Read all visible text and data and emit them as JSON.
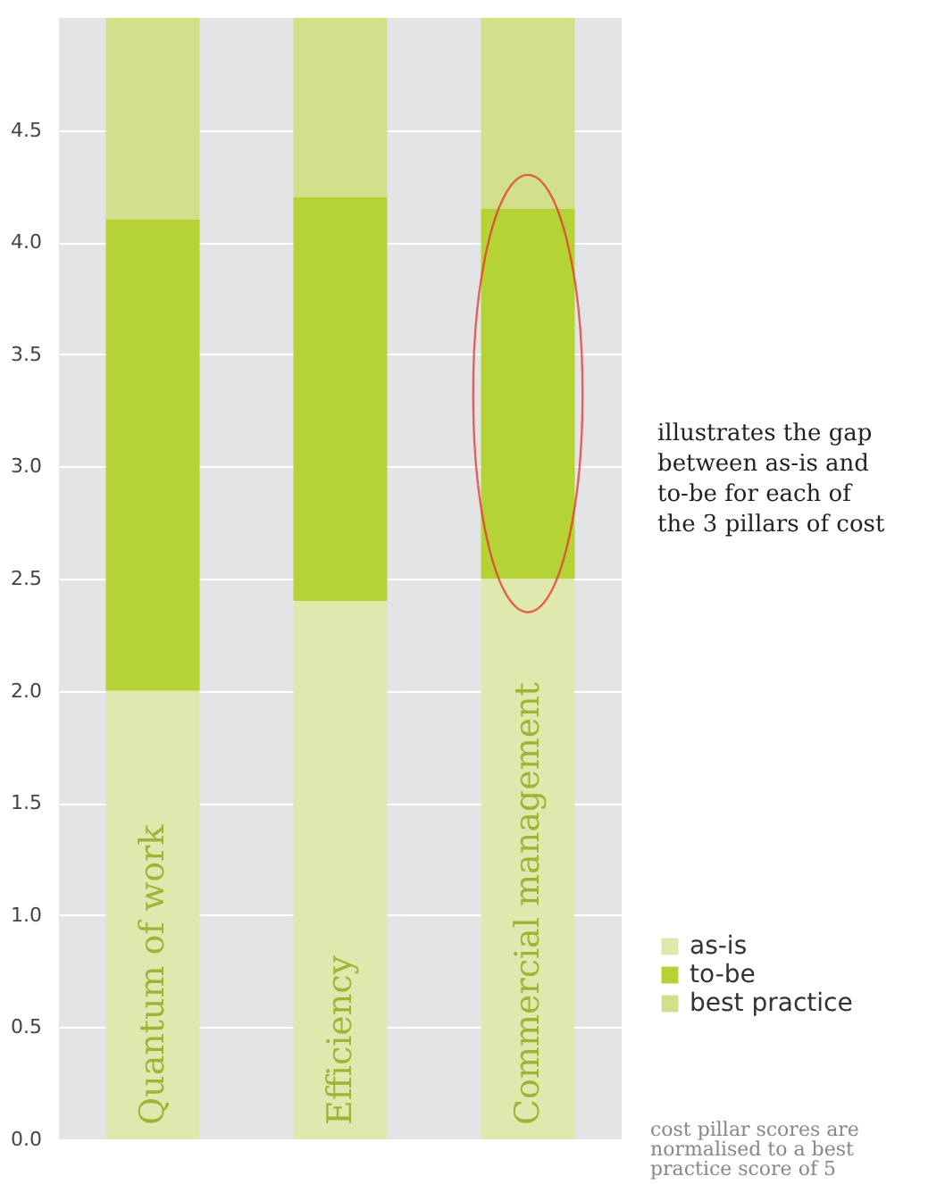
{
  "chart_data": {
    "type": "bar",
    "stacked": true,
    "categories": [
      "Quantum of work",
      "Efficiency",
      "Commercial management"
    ],
    "series": [
      {
        "name": "as-is",
        "color": "#dfe9ad",
        "values": [
          2.0,
          2.4,
          2.5
        ]
      },
      {
        "name": "to-be",
        "color": "#b5d334",
        "values": [
          2.1,
          1.8,
          1.65
        ]
      },
      {
        "name": "best practice",
        "color": "#d2e08b",
        "values": [
          0.9,
          0.8,
          0.85
        ]
      }
    ],
    "ylim": [
      0,
      5
    ],
    "yticks": [
      {
        "value": 0,
        "label": "0.0"
      },
      {
        "value": 0.5,
        "label": "0.5"
      },
      {
        "value": 1,
        "label": "1.0"
      },
      {
        "value": 1.5,
        "label": "1.5"
      },
      {
        "value": 2,
        "label": "2.0"
      },
      {
        "value": 2.5,
        "label": "2.5"
      },
      {
        "value": 3,
        "label": "3.0"
      },
      {
        "value": 3.5,
        "label": "3.5"
      },
      {
        "value": 4,
        "label": "4.0"
      },
      {
        "value": 4.5,
        "label": "4.5"
      }
    ],
    "grid": "y",
    "legend": "bottom right",
    "annotations": [
      "illustrates the gap\nbetween as-is and\nto-be for each of\nthe 3 pillars of cost",
      "cost pillar scores are\nnormalised to a best\npractice score of 5"
    ]
  }
}
